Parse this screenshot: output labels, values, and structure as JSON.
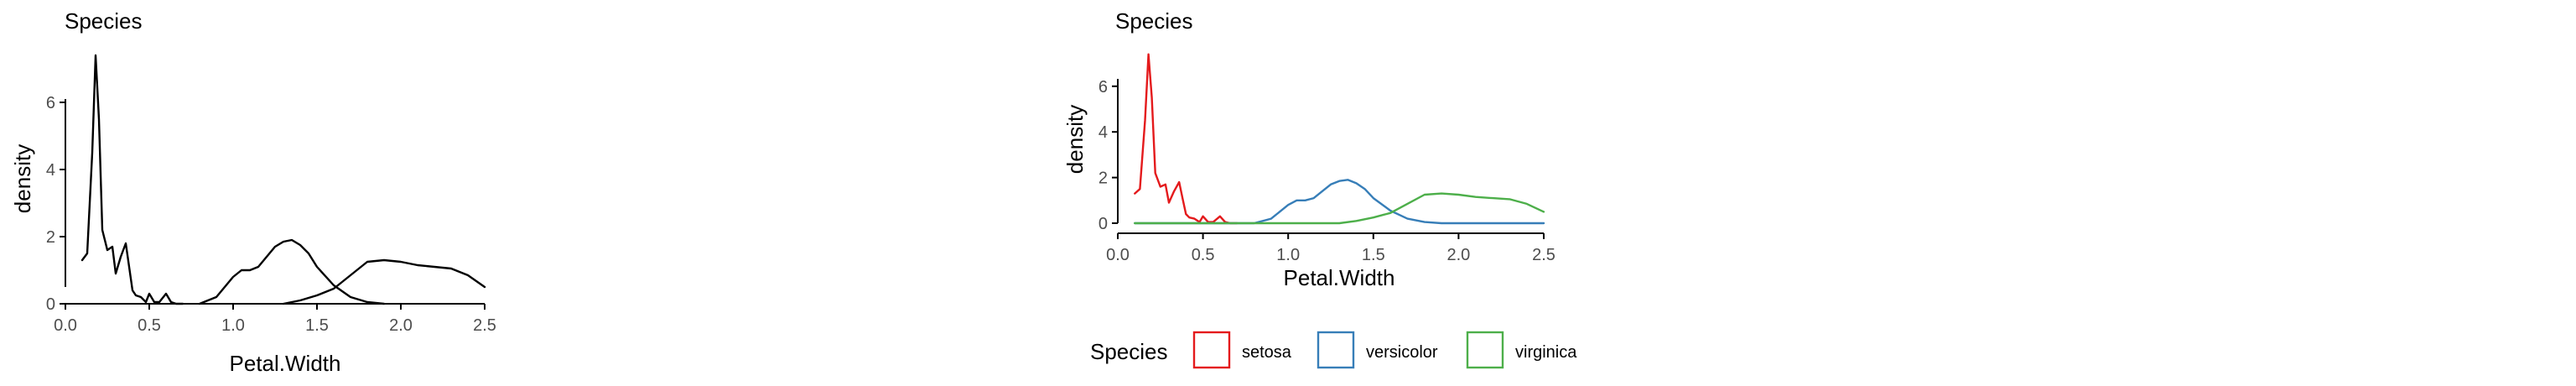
{
  "chart_data": [
    {
      "type": "line",
      "title": "Species",
      "xlabel": "Petal.Width",
      "ylabel": "density",
      "xlim": [
        0,
        2.5
      ],
      "ylim": [
        0,
        7.5
      ],
      "xticks": [
        "0.0",
        "0.5",
        "1.0",
        "1.5",
        "2.0",
        "2.5"
      ],
      "yticks": [
        "0",
        "2",
        "4",
        "6"
      ],
      "grid": false,
      "legend": "none",
      "series": [
        {
          "color": "#000000",
          "x": [
            0.1,
            0.13,
            0.16,
            0.18,
            0.2,
            0.22,
            0.25,
            0.28,
            0.3,
            0.33,
            0.36,
            0.38,
            0.4,
            0.42,
            0.45,
            0.48,
            0.5,
            0.53,
            0.56,
            0.6,
            0.63,
            0.66,
            0.7
          ],
          "y": [
            1.3,
            1.5,
            4.5,
            7.4,
            5.5,
            2.2,
            1.6,
            1.7,
            0.9,
            1.4,
            1.8,
            1.1,
            0.4,
            0.25,
            0.2,
            0.05,
            0.3,
            0.05,
            0.05,
            0.3,
            0.05,
            0.0,
            0.0
          ]
        },
        {
          "color": "#000000",
          "x": [
            0.8,
            0.9,
            1.0,
            1.05,
            1.1,
            1.15,
            1.2,
            1.25,
            1.3,
            1.35,
            1.4,
            1.45,
            1.5,
            1.6,
            1.7,
            1.8,
            1.9
          ],
          "y": [
            0.0,
            0.2,
            0.8,
            1.0,
            1.0,
            1.1,
            1.4,
            1.7,
            1.85,
            1.9,
            1.75,
            1.5,
            1.1,
            0.55,
            0.2,
            0.05,
            0.0
          ]
        },
        {
          "color": "#000000",
          "x": [
            1.3,
            1.4,
            1.5,
            1.6,
            1.7,
            1.8,
            1.9,
            2.0,
            2.1,
            2.2,
            2.3,
            2.4,
            2.5
          ],
          "y": [
            0.0,
            0.1,
            0.25,
            0.45,
            0.85,
            1.25,
            1.3,
            1.25,
            1.15,
            1.1,
            1.05,
            0.85,
            0.5
          ]
        }
      ]
    },
    {
      "type": "line",
      "title": "Species",
      "xlabel": "Petal.Width",
      "ylabel": "density",
      "xlim": [
        0,
        2.5
      ],
      "ylim": [
        0,
        7.5
      ],
      "xticks": [
        "0.0",
        "0.5",
        "1.0",
        "1.5",
        "2.0",
        "2.5"
      ],
      "yticks": [
        "0",
        "2",
        "4",
        "6"
      ],
      "grid": false,
      "legend": "bottom",
      "legend_title": "Species",
      "series": [
        {
          "name": "setosa",
          "color": "#e41a1c",
          "x": [
            0.1,
            0.13,
            0.16,
            0.18,
            0.2,
            0.22,
            0.25,
            0.28,
            0.3,
            0.33,
            0.36,
            0.38,
            0.4,
            0.42,
            0.45,
            0.48,
            0.5,
            0.53,
            0.56,
            0.6,
            0.63,
            0.66,
            0.7
          ],
          "y": [
            1.3,
            1.5,
            4.5,
            7.4,
            5.5,
            2.2,
            1.6,
            1.7,
            0.9,
            1.4,
            1.8,
            1.1,
            0.4,
            0.25,
            0.2,
            0.05,
            0.3,
            0.05,
            0.05,
            0.3,
            0.05,
            0.0,
            0.0
          ]
        },
        {
          "name": "versicolor",
          "color": "#377eb8",
          "x": [
            0.1,
            0.8,
            0.9,
            1.0,
            1.05,
            1.1,
            1.15,
            1.2,
            1.25,
            1.3,
            1.35,
            1.4,
            1.45,
            1.5,
            1.6,
            1.7,
            1.8,
            1.9,
            2.5
          ],
          "y": [
            0.0,
            0.0,
            0.2,
            0.8,
            1.0,
            1.0,
            1.1,
            1.4,
            1.7,
            1.85,
            1.9,
            1.75,
            1.5,
            1.1,
            0.55,
            0.2,
            0.05,
            0.0,
            0.0
          ]
        },
        {
          "name": "virginica",
          "color": "#4daf4a",
          "x": [
            0.1,
            1.3,
            1.4,
            1.5,
            1.6,
            1.7,
            1.8,
            1.9,
            2.0,
            2.1,
            2.2,
            2.3,
            2.4,
            2.5
          ],
          "y": [
            0.0,
            0.0,
            0.1,
            0.25,
            0.45,
            0.85,
            1.25,
            1.3,
            1.25,
            1.15,
            1.1,
            1.05,
            0.85,
            0.5
          ]
        }
      ]
    }
  ]
}
